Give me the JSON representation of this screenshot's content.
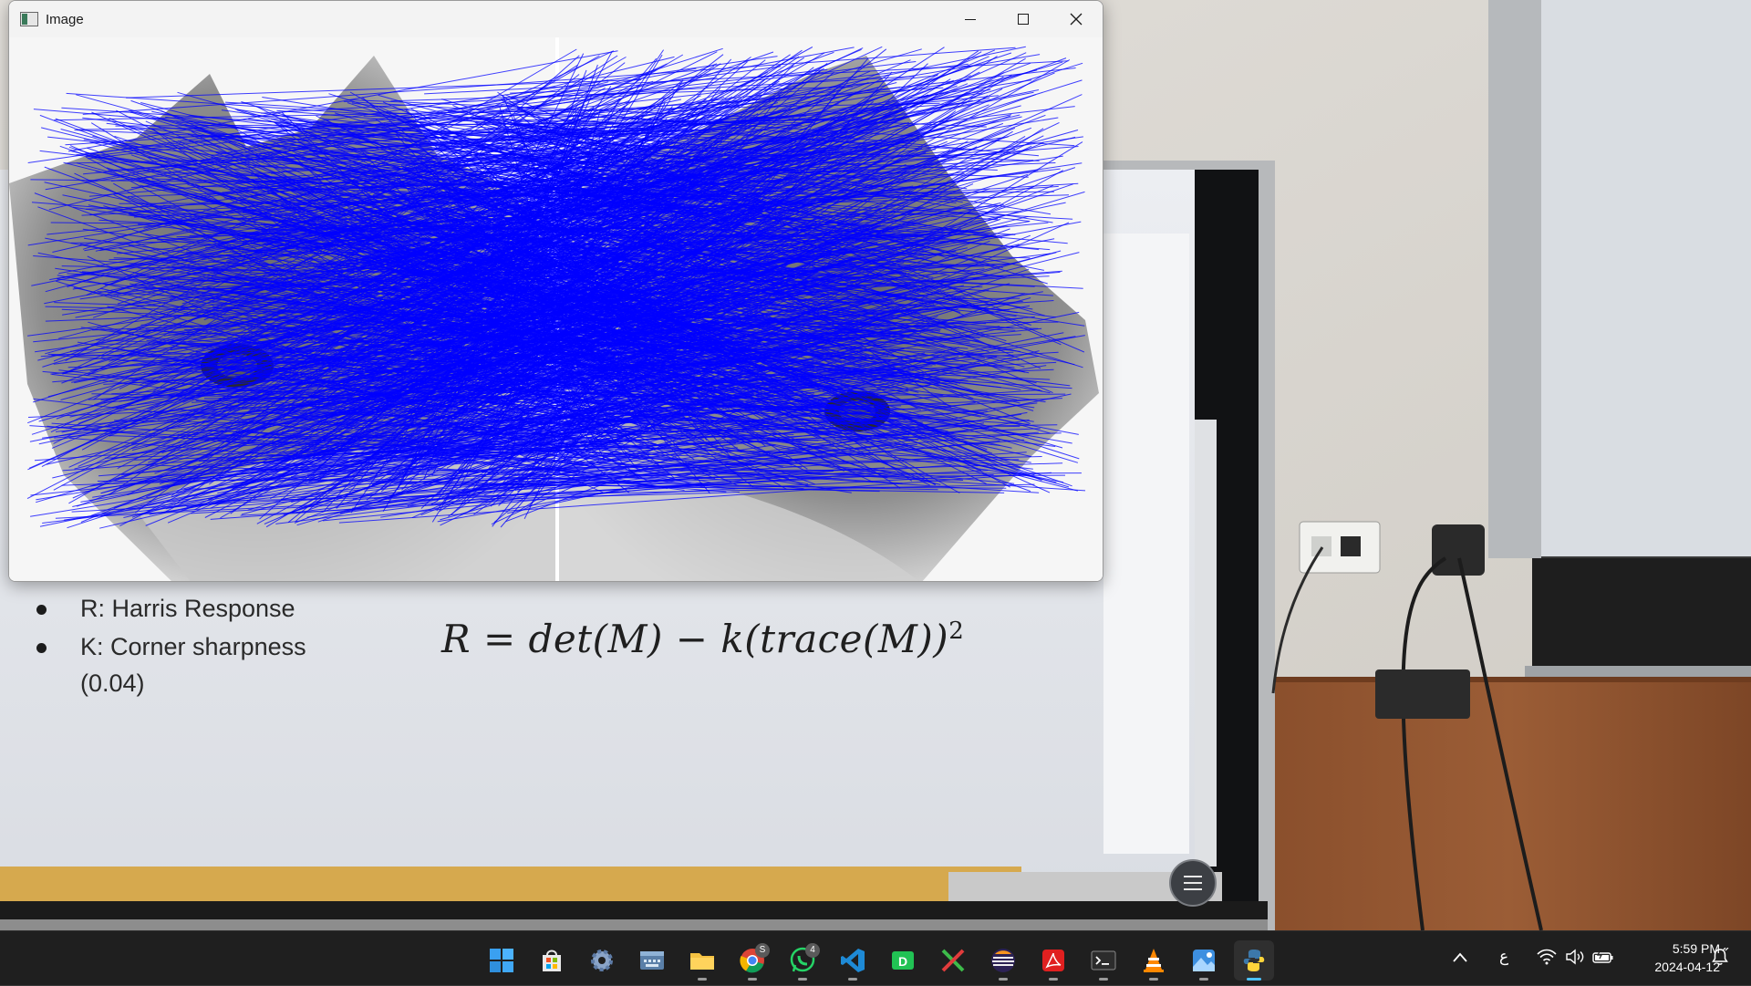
{
  "window": {
    "title": "Image",
    "icon": "opencv-window-icon",
    "controls": [
      "minimize-icon",
      "maximize-icon",
      "close-icon"
    ]
  },
  "slide": {
    "bullets": [
      {
        "text": "R: Harris Response"
      },
      {
        "text": "K: Corner sharpness"
      }
    ],
    "bullet_continuation": "(0.04)",
    "formula_main": "R = det(M) − k(trace(M))",
    "formula_exponent": "2"
  },
  "taskbar": {
    "apps": [
      {
        "name": "start",
        "icon": "windows-start-icon",
        "badge": ""
      },
      {
        "name": "microsoft-store",
        "icon": "store-icon",
        "badge": ""
      },
      {
        "name": "settings",
        "icon": "gear-icon",
        "badge": ""
      },
      {
        "name": "on-screen-keyboard",
        "icon": "keyboard-icon",
        "badge": ""
      },
      {
        "name": "file-explorer",
        "icon": "folder-icon",
        "badge": ""
      },
      {
        "name": "chrome",
        "icon": "chrome-icon",
        "badge": "S"
      },
      {
        "name": "whatsapp",
        "icon": "whatsapp-icon",
        "badge": "4"
      },
      {
        "name": "vs-code",
        "icon": "vscode-icon",
        "badge": ""
      },
      {
        "name": "app-d",
        "icon": "d-app-icon",
        "badge": ""
      },
      {
        "name": "app-x",
        "icon": "x-app-icon",
        "badge": ""
      },
      {
        "name": "eclipse",
        "icon": "eclipse-icon",
        "badge": ""
      },
      {
        "name": "acrobat",
        "icon": "pdf-icon",
        "badge": ""
      },
      {
        "name": "terminal",
        "icon": "terminal-icon",
        "badge": ""
      },
      {
        "name": "vlc",
        "icon": "vlc-icon",
        "badge": ""
      },
      {
        "name": "photos",
        "icon": "photos-icon",
        "badge": ""
      },
      {
        "name": "python",
        "icon": "python-icon",
        "badge": ""
      }
    ],
    "tray": {
      "chevron_icon": "chevron-up-icon",
      "language": "ع",
      "wifi_icon": "wifi-icon",
      "volume_icon": "volume-icon",
      "battery_icon": "battery-icon",
      "notification_icon": "notification-icon",
      "time": "5:59 PM",
      "date": "2024-04-12"
    }
  },
  "colors": {
    "match_lines": "#0000ff",
    "taskbar_bg": "#1f1f1f",
    "active_indicator": "#4cc2ff"
  }
}
